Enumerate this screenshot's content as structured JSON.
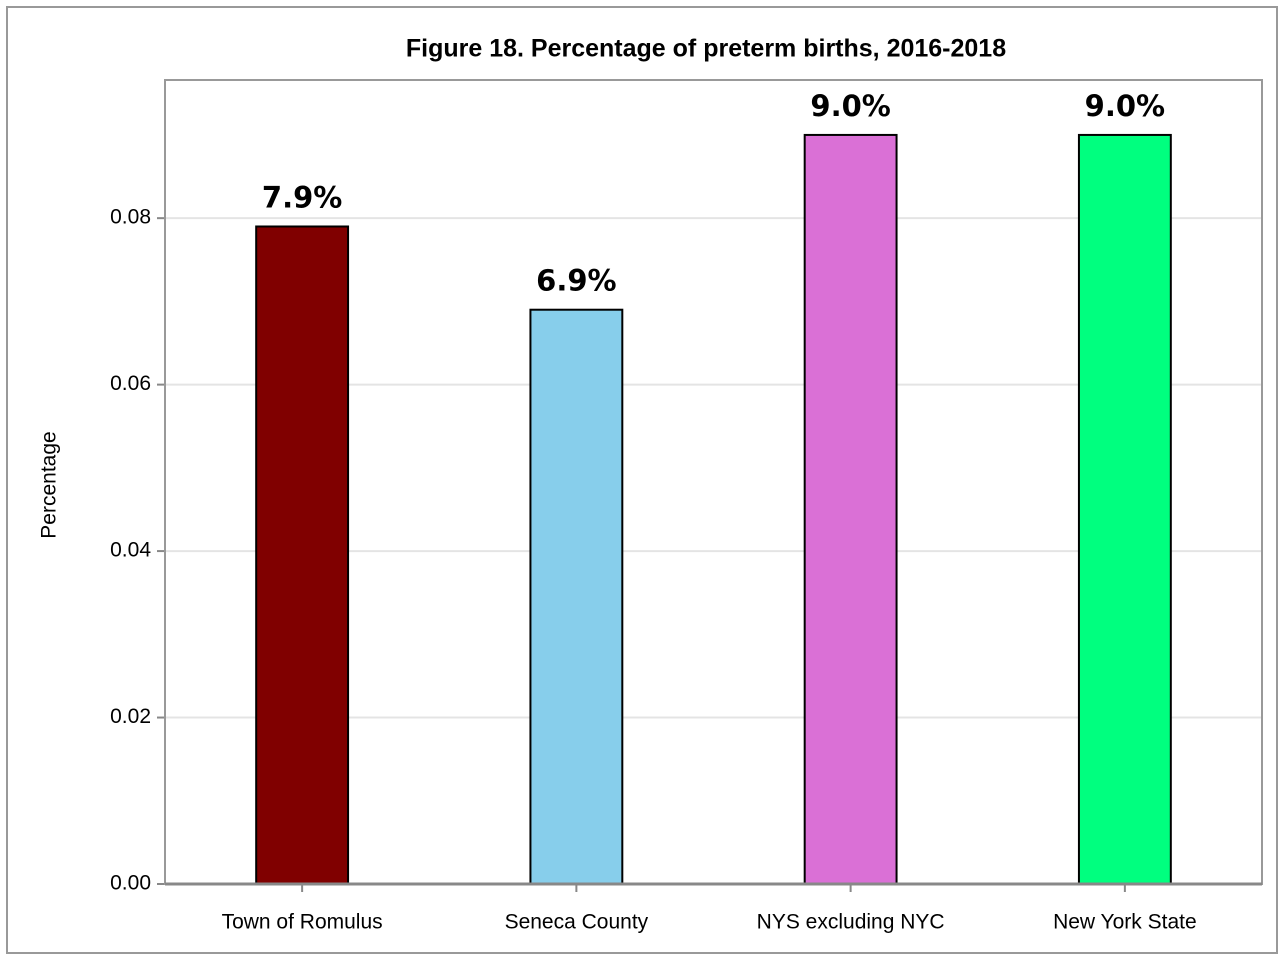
{
  "chart_data": {
    "type": "bar",
    "title": "Figure 18. Percentage of preterm births, 2016-2018",
    "y_label": "Percentage",
    "categories": [
      "Town of Romulus",
      "Seneca County",
      "NYS excluding NYC",
      "New York State"
    ],
    "values": [
      0.079,
      0.069,
      0.09,
      0.09
    ],
    "value_labels": [
      "7.9%",
      "6.9%",
      "9.0%",
      "9.0%"
    ],
    "colors": [
      "#800000",
      "#87ceeb",
      "#da70d6",
      "#00ff7f"
    ],
    "ylim": [
      0,
      0.0966
    ],
    "yticks": [
      {
        "value": 0,
        "label": "0.00"
      },
      0.02,
      0.04,
      0.06,
      0.08
    ],
    "grid": true
  }
}
